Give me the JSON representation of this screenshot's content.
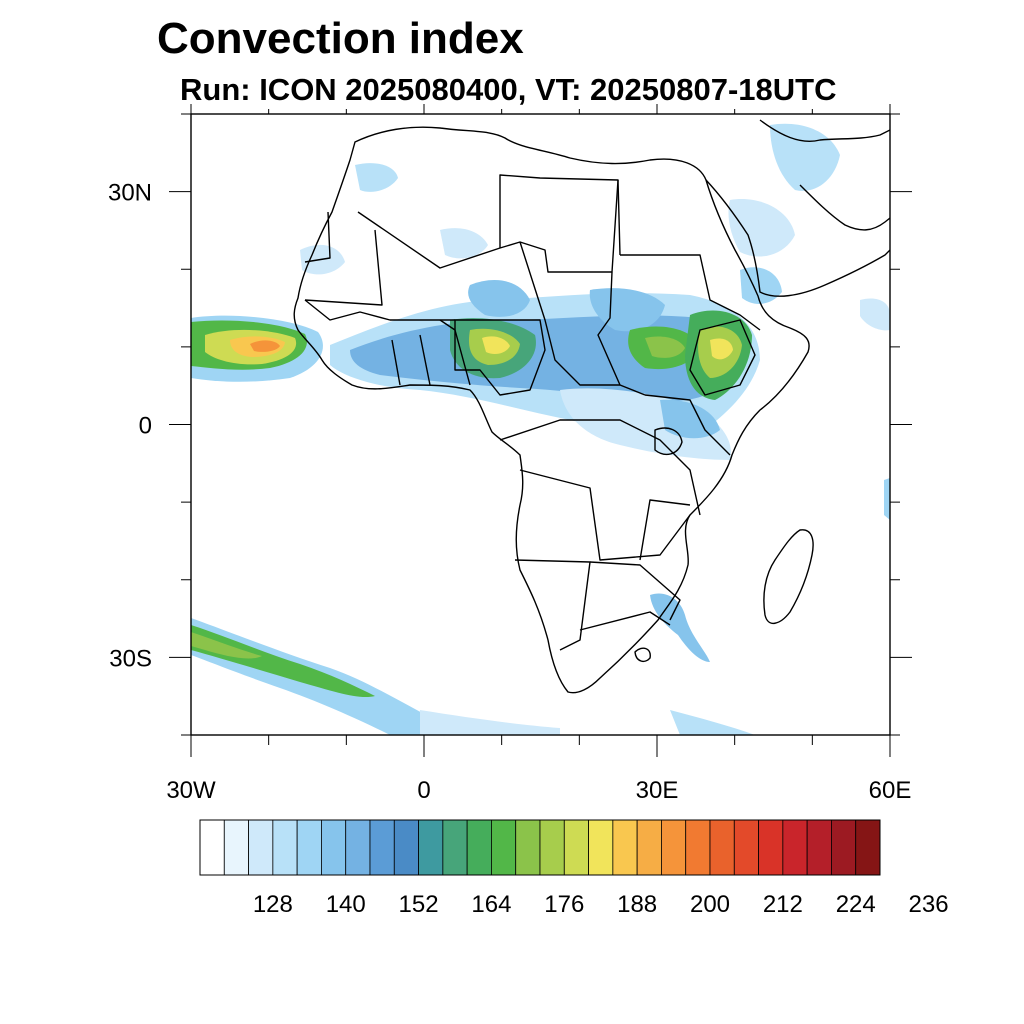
{
  "title": "Convection index",
  "subtitle": "Run: ICON 2025080400,  VT: 20250807-18UTC",
  "map": {
    "region": "Africa",
    "lon_range": [
      -30,
      60
    ],
    "lat_range": [
      -40,
      40
    ],
    "x_ticks": [
      {
        "lon": -30,
        "label": "30W"
      },
      {
        "lon": 0,
        "label": "0"
      },
      {
        "lon": 30,
        "label": "30E"
      },
      {
        "lon": 60,
        "label": "60E"
      }
    ],
    "y_ticks": [
      {
        "lat": 30,
        "label": "30N"
      },
      {
        "lat": 0,
        "label": "0"
      },
      {
        "lat": -30,
        "label": "30S"
      }
    ]
  },
  "colorbar": {
    "colors": [
      "#ffffff",
      "#e8f5fd",
      "#cfe9fa",
      "#b8e1f8",
      "#9fd5f4",
      "#86c4ec",
      "#74b2e3",
      "#5b9cd6",
      "#4a8bc6",
      "#3e9aa0",
      "#47a57a",
      "#45ad5b",
      "#52b748",
      "#8bc34a",
      "#a7cd4c",
      "#cedb53",
      "#f1e45b",
      "#f9c74f",
      "#f6ad45",
      "#f5943a",
      "#f17a31",
      "#e9622c",
      "#e34a2a",
      "#d93328",
      "#c9252b",
      "#b41f29",
      "#9c1a22",
      "#851515"
    ],
    "labels": [
      "128",
      "140",
      "152",
      "164",
      "176",
      "188",
      "200",
      "212",
      "224",
      "236"
    ]
  }
}
